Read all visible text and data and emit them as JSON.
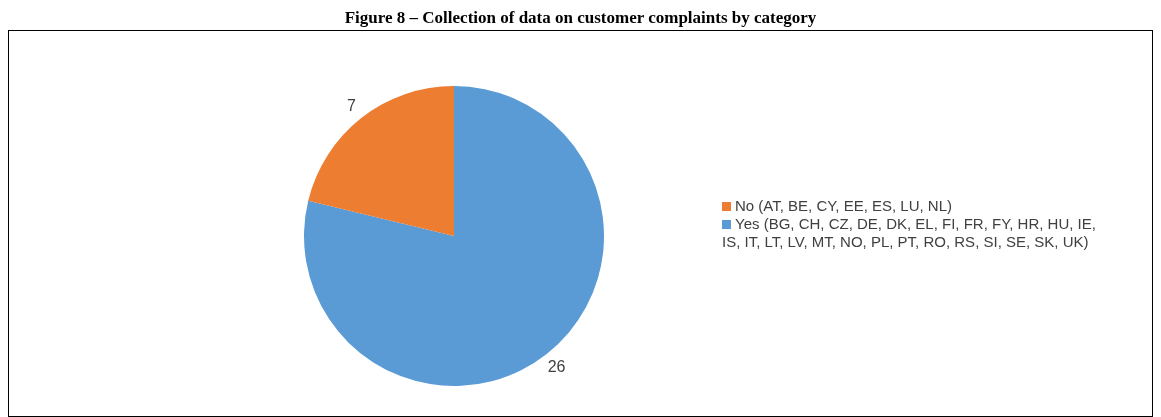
{
  "chart_data": {
    "type": "pie",
    "title": "Figure 8 – Collection of data on customer complaints by category",
    "categories": [
      "Yes (BG, CH, CZ, DE, DK, EL, FI, FR, FY, HR, HU, IE, IS, IT, LT, LV, MT, NO, PL, PT, RO, RS, SI, SE, SK, UK)",
      "No (AT, BE, CY, EE, ES, LU, NL)"
    ],
    "values": [
      26,
      7
    ],
    "colors": [
      "#5b9bd5",
      "#ed7d31"
    ],
    "data_labels": true,
    "legend": "right"
  }
}
